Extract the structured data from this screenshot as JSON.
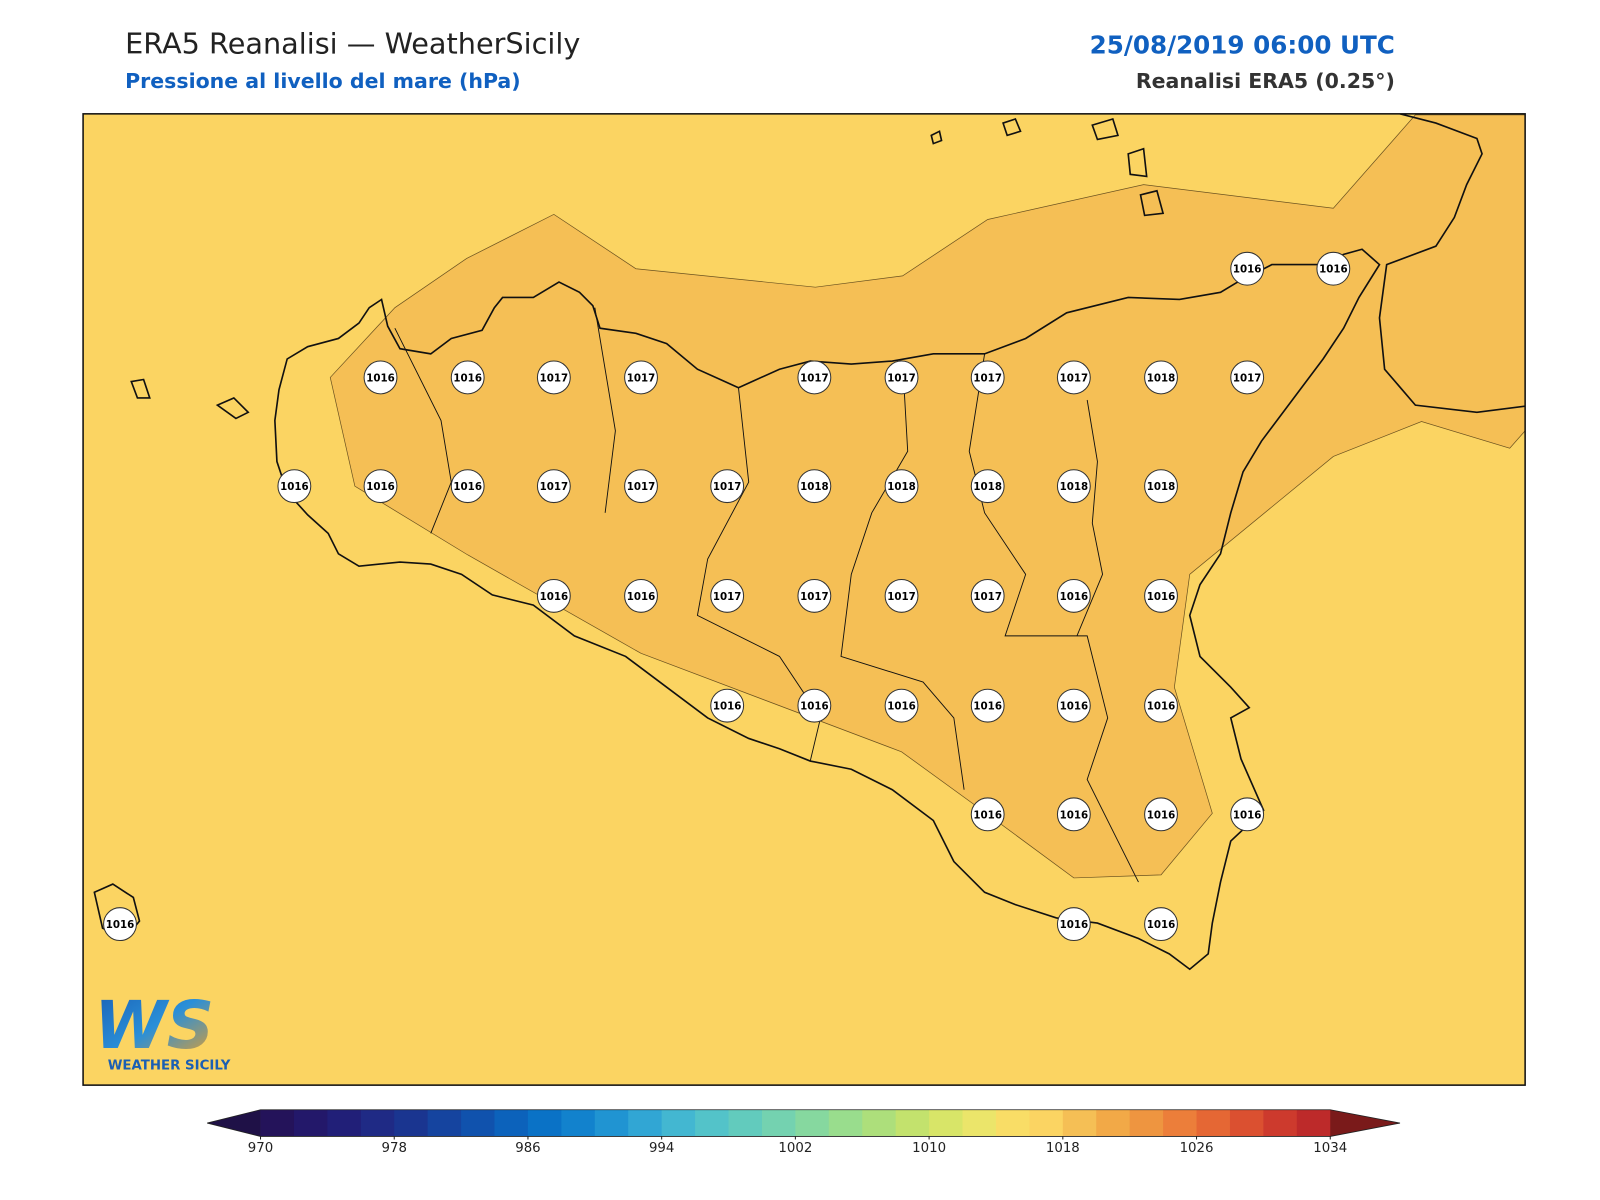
{
  "header": {
    "title": "ERA5 Reanalisi — WeatherSicily",
    "subtitle": "Pressione al livello del mare (hPa)",
    "datetime": "25/08/2019 06:00 UTC",
    "source": "Reanalisi ERA5 (0.25°)"
  },
  "map": {
    "field_colors": [
      "#fbd462",
      "#f5bf55"
    ],
    "coast_color": "#111111",
    "stations": [
      1016,
      1016,
      1016,
      1016,
      1017,
      1017,
      1017,
      1017,
      1017,
      1017,
      1018,
      1017,
      1016,
      1016,
      1016,
      1017,
      1017,
      1017,
      1018,
      1018,
      1018,
      1018,
      1018,
      1016,
      1016,
      1017,
      1017,
      1017,
      1017,
      1016,
      1016,
      1016,
      1016,
      1016,
      1016,
      1016,
      1016,
      1016,
      1016,
      1016,
      1016,
      1016,
      1016,
      1016
    ]
  },
  "colorbar": {
    "ticks": [
      970,
      978,
      986,
      994,
      1002,
      1010,
      1018,
      1026,
      1034
    ],
    "colors": [
      "#24135a",
      "#23186a",
      "#211f78",
      "#1f2a85",
      "#1a3590",
      "#15449f",
      "#1052ad",
      "#0c62bb",
      "#0a72c6",
      "#1282cd",
      "#2094d2",
      "#31a6d4",
      "#43b7d1",
      "#53c3c9",
      "#62cbbd",
      "#74d2b0",
      "#86d89f",
      "#99dd8d",
      "#addf7b",
      "#c3e26d",
      "#d8e568",
      "#ebe56a",
      "#f9dd66",
      "#fbd462",
      "#f5bf55",
      "#f2a947",
      "#ee9540",
      "#ec7e3a",
      "#e56734",
      "#db5030",
      "#cd3a2d",
      "#bd2a2a"
    ],
    "extend_colors": [
      "#1f1147",
      "#7a1a1a"
    ]
  },
  "logo": {
    "mark": "WS",
    "name": "WEATHER SICILY"
  }
}
